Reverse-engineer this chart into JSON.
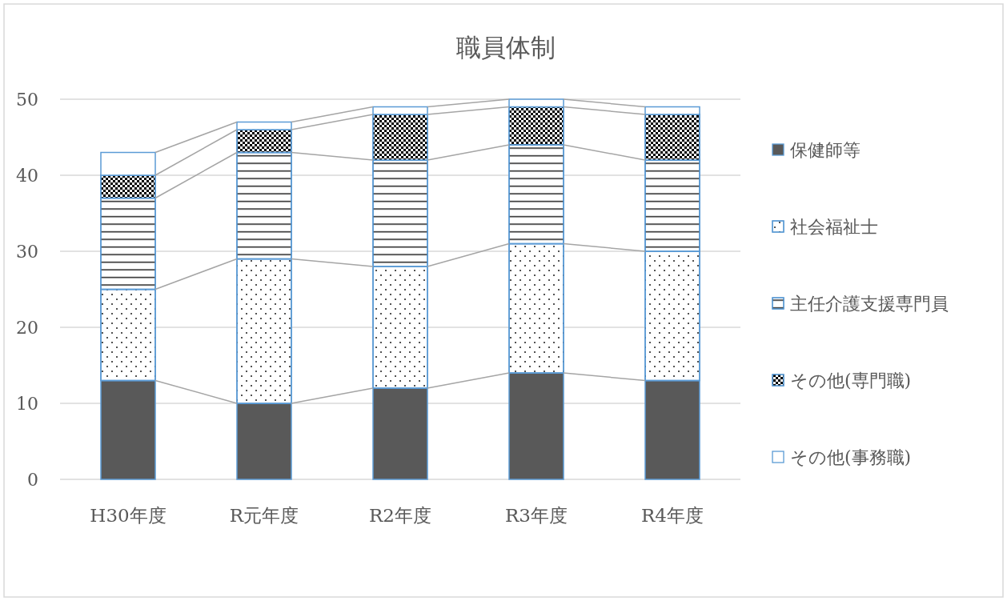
{
  "chart_data": {
    "type": "bar",
    "stacked": true,
    "title": "職員体制",
    "categories": [
      "H30年度",
      "R元年度",
      "R2年度",
      "R3年度",
      "R4年度"
    ],
    "series": [
      {
        "name": "保健師等",
        "color": "#595959",
        "values": [
          13,
          10,
          12,
          14,
          13
        ]
      },
      {
        "name": "社会福祉士",
        "color": "#ffffff",
        "values": [
          12,
          19,
          16,
          17,
          17
        ]
      },
      {
        "name": "主任介護支援専門員",
        "color": "#ffffff",
        "values": [
          12,
          14,
          14,
          13,
          12
        ]
      },
      {
        "name": "その他(専門職)",
        "color": "#ffffff",
        "values": [
          3,
          3,
          6,
          5,
          6
        ]
      },
      {
        "name": "その他(事務職)",
        "color": "#ffffff",
        "values": [
          3,
          1,
          1,
          1,
          1
        ]
      }
    ],
    "ylim": [
      0,
      50
    ],
    "yticks": [
      0,
      10,
      20,
      30,
      40,
      50
    ],
    "grid": "y",
    "legend": "right"
  }
}
